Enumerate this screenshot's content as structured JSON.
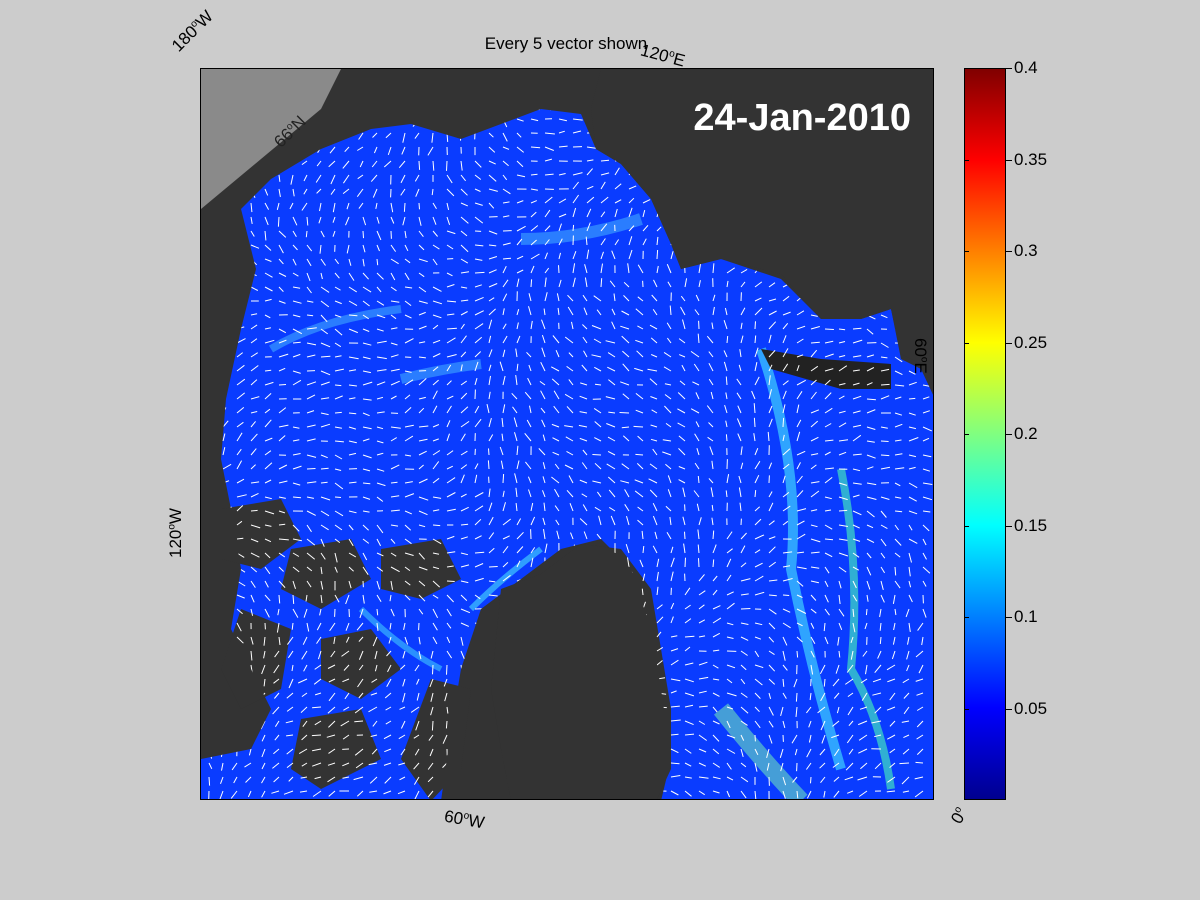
{
  "title": "Every 5 vector shown",
  "date": "24-Jan-2010",
  "labels": {
    "lon_180w": "180",
    "lon_120e": "120",
    "lon_60e": "60",
    "lon_120w": "120",
    "lon_60w": "60",
    "lon_0": "0",
    "lat_66n": "66",
    "suffix_w": "W",
    "suffix_e": "E",
    "suffix_n": "N",
    "deg": "o"
  },
  "colorbar": {
    "colormap": "jet",
    "range": [
      0,
      0.4
    ],
    "ticks": [
      "0.4",
      "0.35",
      "0.3",
      "0.25",
      "0.2",
      "0.15",
      "0.1",
      "0.05"
    ]
  },
  "colors": {
    "ocean": "#0a3cff",
    "land": "#333333",
    "outside": "#888888",
    "vectors": "#ffffff",
    "background": "#cccccc"
  }
}
